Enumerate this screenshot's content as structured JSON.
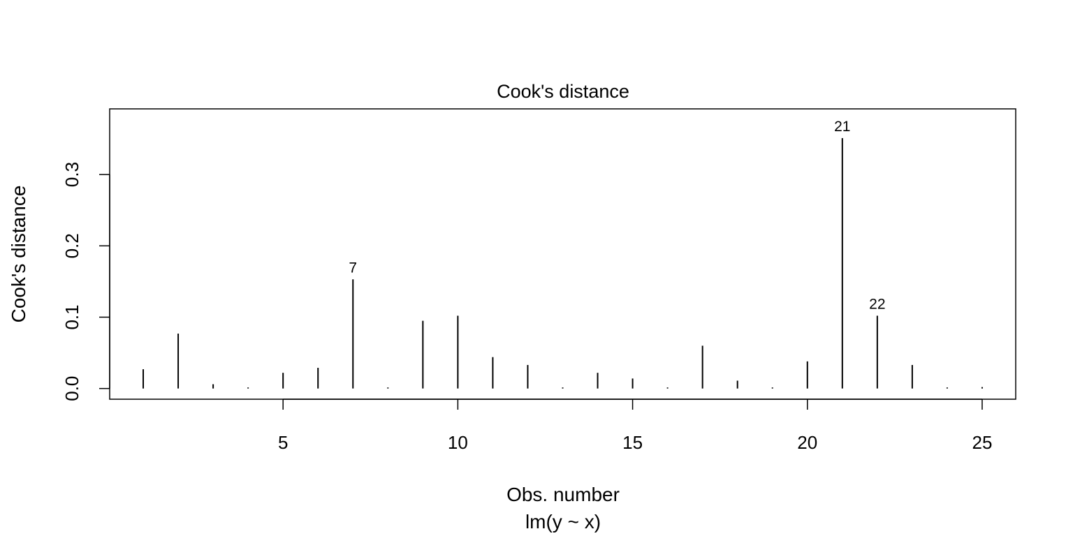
{
  "chart_data": {
    "type": "bar",
    "title": "Cook's distance",
    "xlabel": "Obs. number",
    "sub": "lm(y ~ x)",
    "ylabel": "Cook's distance",
    "xlim": [
      0.04,
      25.96
    ],
    "ylim": [
      -0.015,
      0.392
    ],
    "x_ticks": [
      5,
      10,
      15,
      20,
      25
    ],
    "y_ticks": [
      "0.0",
      "0.1",
      "0.2",
      "0.3"
    ],
    "x": [
      1,
      2,
      3,
      4,
      5,
      6,
      7,
      8,
      9,
      10,
      11,
      12,
      13,
      14,
      15,
      16,
      17,
      18,
      19,
      20,
      21,
      22,
      23,
      24,
      25
    ],
    "values": [
      0.027,
      0.077,
      0.006,
      0.001,
      0.022,
      0.029,
      0.153,
      0.0005,
      0.095,
      0.102,
      0.044,
      0.033,
      0.0005,
      0.022,
      0.014,
      0.0005,
      0.06,
      0.011,
      0.0005,
      0.038,
      0.351,
      0.102,
      0.033,
      0.0005,
      0.002
    ],
    "labeled_points": [
      {
        "x": 7,
        "label": "7"
      },
      {
        "x": 21,
        "label": "21"
      },
      {
        "x": 22,
        "label": "22"
      }
    ],
    "grid": false,
    "legend": "none"
  }
}
